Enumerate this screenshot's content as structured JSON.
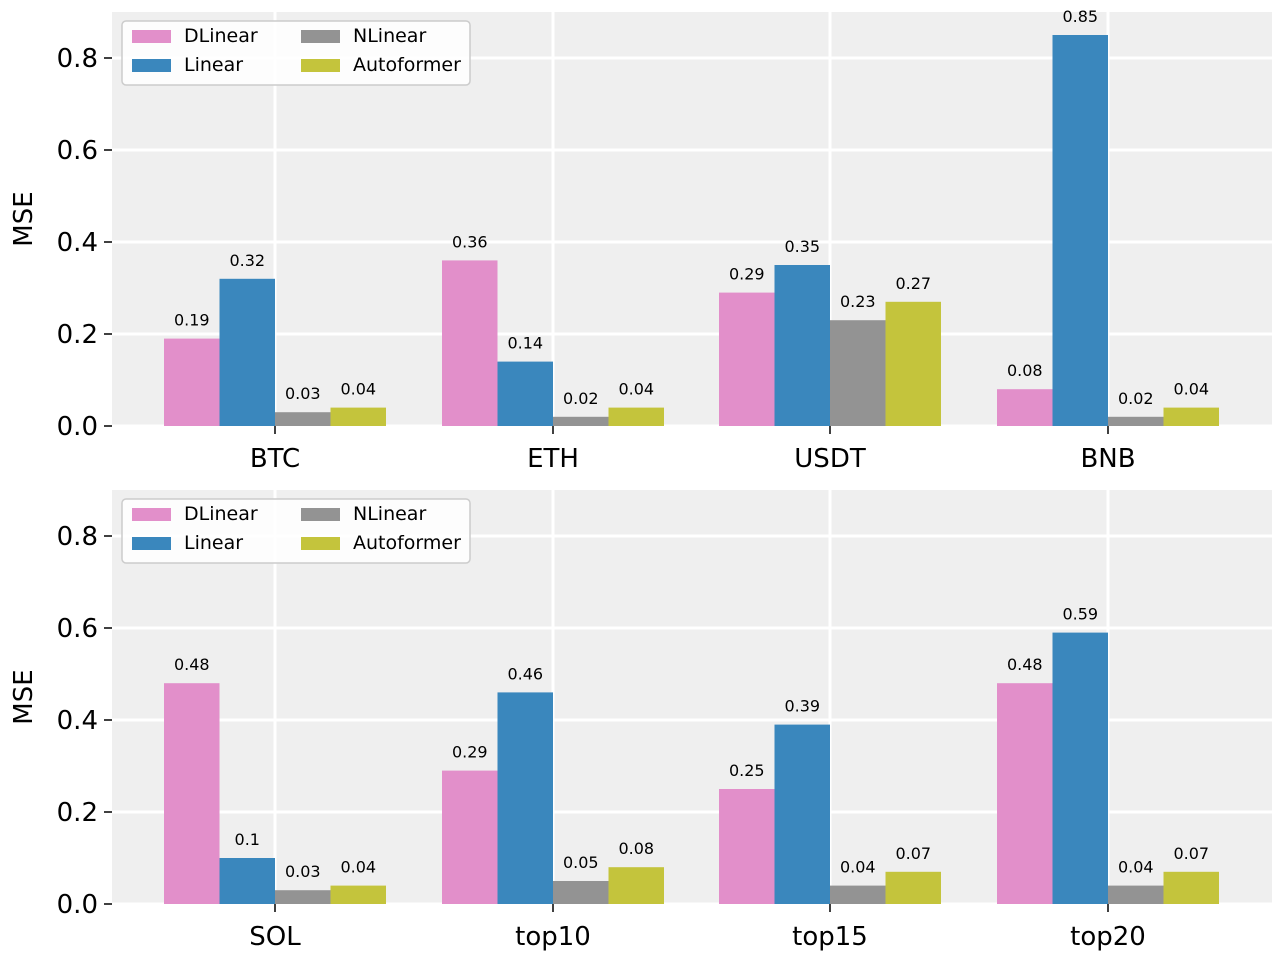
{
  "chart_data": [
    {
      "type": "bar",
      "ylabel": "MSE",
      "ylim": [
        0,
        0.9
      ],
      "yticks": [
        "0.0",
        "0.2",
        "0.4",
        "0.6",
        "0.8"
      ],
      "categories": [
        "BTC",
        "ETH",
        "USDT",
        "BNB"
      ],
      "series": [
        {
          "name": "DLinear",
          "color": "#e28fca",
          "values": [
            0.19,
            0.36,
            0.29,
            0.08
          ],
          "labels": [
            "0.19",
            "0.36",
            "0.29",
            "0.08"
          ]
        },
        {
          "name": "Linear",
          "color": "#3a87bd",
          "values": [
            0.32,
            0.14,
            0.35,
            0.85
          ],
          "labels": [
            "0.32",
            "0.14",
            "0.35",
            "0.85"
          ]
        },
        {
          "name": "NLinear",
          "color": "#939393",
          "values": [
            0.03,
            0.02,
            0.23,
            0.02
          ],
          "labels": [
            "0.03",
            "0.02",
            "0.23",
            "0.02"
          ]
        },
        {
          "name": "Autoformer",
          "color": "#c4c43c",
          "values": [
            0.04,
            0.04,
            0.27,
            0.04
          ],
          "labels": [
            "0.04",
            "0.04",
            "0.27",
            "0.04"
          ]
        }
      ],
      "legend": "top-left",
      "grid": true
    },
    {
      "type": "bar",
      "ylabel": "MSE",
      "ylim": [
        0,
        0.9
      ],
      "yticks": [
        "0.0",
        "0.2",
        "0.4",
        "0.6",
        "0.8"
      ],
      "categories": [
        "SOL",
        "top10",
        "top15",
        "top20"
      ],
      "series": [
        {
          "name": "DLinear",
          "color": "#e28fca",
          "values": [
            0.48,
            0.29,
            0.25,
            0.48
          ],
          "labels": [
            "0.48",
            "0.29",
            "0.25",
            "0.48"
          ]
        },
        {
          "name": "Linear",
          "color": "#3a87bd",
          "values": [
            0.1,
            0.46,
            0.39,
            0.59
          ],
          "labels": [
            "0.1",
            "0.46",
            "0.39",
            "0.59"
          ]
        },
        {
          "name": "NLinear",
          "color": "#939393",
          "values": [
            0.03,
            0.05,
            0.04,
            0.04
          ],
          "labels": [
            "0.03",
            "0.05",
            "0.04",
            "0.04"
          ]
        },
        {
          "name": "Autoformer",
          "color": "#c4c43c",
          "values": [
            0.04,
            0.08,
            0.07,
            0.07
          ],
          "labels": [
            "0.04",
            "0.08",
            "0.07",
            "0.07"
          ]
        }
      ],
      "legend": "top-left",
      "grid": true
    }
  ]
}
